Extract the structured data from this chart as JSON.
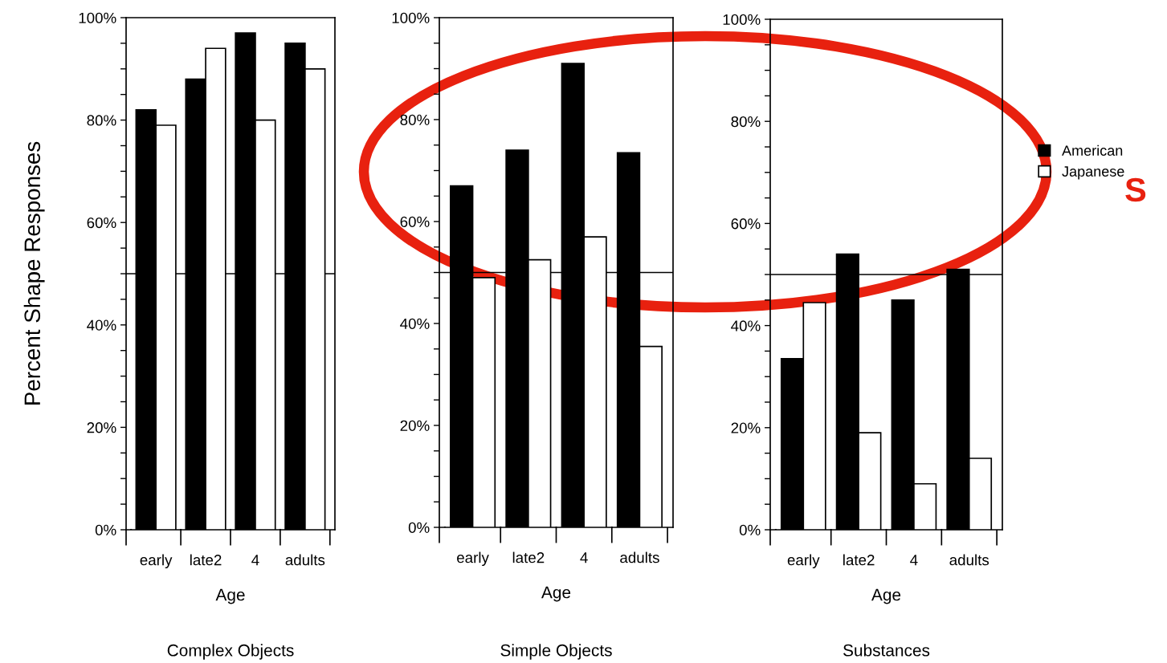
{
  "chart_data": [
    {
      "type": "bar",
      "title": "Complex Objects",
      "xlabel": "Age",
      "ylabel": "Percent Shape Responses",
      "categories": [
        "early",
        "late2",
        "4",
        "adults"
      ],
      "series": [
        {
          "color": "#000000",
          "values": [
            82,
            88,
            97,
            95
          ]
        },
        {
          "color": "#ffffff",
          "values": [
            79,
            94,
            80,
            90
          ]
        }
      ],
      "ylim": [
        0,
        100
      ],
      "yticks": [
        {
          "value": 0,
          "label": "0%"
        },
        {
          "value": 5,
          "label": null
        },
        {
          "value": 10,
          "label": null
        },
        {
          "value": 15,
          "label": null
        },
        {
          "value": 20,
          "label": "20%"
        },
        {
          "value": 25,
          "label": null
        },
        {
          "value": 30,
          "label": null
        },
        {
          "value": 35,
          "label": null
        },
        {
          "value": 40,
          "label": "40%"
        },
        {
          "value": 45,
          "label": null
        },
        {
          "value": 50,
          "label": null
        },
        {
          "value": 55,
          "label": null
        },
        {
          "value": 60,
          "label": "60%"
        },
        {
          "value": 65,
          "label": null
        },
        {
          "value": 70,
          "label": null
        },
        {
          "value": 75,
          "label": null
        },
        {
          "value": 80,
          "label": "80%"
        },
        {
          "value": 85,
          "label": null
        },
        {
          "value": 90,
          "label": null
        },
        {
          "value": 95,
          "label": null
        },
        {
          "value": 100,
          "label": "100%"
        }
      ],
      "ref_lines": [
        {
          "axis": "y",
          "value": 50,
          "label": null,
          "color": "#000000"
        }
      ],
      "grid": false
    },
    {
      "type": "bar",
      "title": "Simple Objects",
      "xlabel": "Age",
      "categories": [
        "early",
        "late2",
        "4",
        "adults"
      ],
      "series": [
        {
          "color": "#000000",
          "values": [
            67,
            74,
            91,
            73.5
          ]
        },
        {
          "color": "#ffffff",
          "values": [
            49,
            52.5,
            57,
            35.5
          ]
        }
      ],
      "ylim": [
        0,
        100
      ],
      "yticks": [
        {
          "value": 0,
          "label": "0%"
        },
        {
          "value": 5,
          "label": null
        },
        {
          "value": 10,
          "label": null
        },
        {
          "value": 15,
          "label": null
        },
        {
          "value": 20,
          "label": "20%"
        },
        {
          "value": 25,
          "label": null
        },
        {
          "value": 30,
          "label": null
        },
        {
          "value": 35,
          "label": null
        },
        {
          "value": 40,
          "label": "40%"
        },
        {
          "value": 45,
          "label": null
        },
        {
          "value": 50,
          "label": null
        },
        {
          "value": 55,
          "label": null
        },
        {
          "value": 60,
          "label": "60%"
        },
        {
          "value": 65,
          "label": null
        },
        {
          "value": 70,
          "label": null
        },
        {
          "value": 75,
          "label": null
        },
        {
          "value": 80,
          "label": "80%"
        },
        {
          "value": 85,
          "label": null
        },
        {
          "value": 90,
          "label": null
        },
        {
          "value": 95,
          "label": null
        },
        {
          "value": 100,
          "label": "100%"
        }
      ],
      "ref_lines": [
        {
          "axis": "y",
          "value": 50,
          "label": null,
          "color": "#000000"
        }
      ],
      "grid": false
    },
    {
      "type": "bar",
      "title": "Substances",
      "xlabel": "Age",
      "categories": [
        "early",
        "late2",
        "4",
        "adults"
      ],
      "series": [
        {
          "name": "American",
          "color": "#000000",
          "values": [
            33.5,
            54,
            45,
            51
          ]
        },
        {
          "name": "Japanese",
          "color": "#ffffff",
          "values": [
            44.5,
            19,
            9,
            14
          ]
        }
      ],
      "ylim": [
        0,
        100
      ],
      "yticks": [
        {
          "value": 0,
          "label": "0%"
        },
        {
          "value": 5,
          "label": null
        },
        {
          "value": 10,
          "label": null
        },
        {
          "value": 15,
          "label": null
        },
        {
          "value": 20,
          "label": "20%"
        },
        {
          "value": 25,
          "label": null
        },
        {
          "value": 30,
          "label": null
        },
        {
          "value": 35,
          "label": null
        },
        {
          "value": 40,
          "label": "40%"
        },
        {
          "value": 45,
          "label": null
        },
        {
          "value": 50,
          "label": null
        },
        {
          "value": 55,
          "label": null
        },
        {
          "value": 60,
          "label": "60%"
        },
        {
          "value": 65,
          "label": null
        },
        {
          "value": 70,
          "label": null
        },
        {
          "value": 75,
          "label": null
        },
        {
          "value": 80,
          "label": "80%"
        },
        {
          "value": 85,
          "label": null
        },
        {
          "value": 90,
          "label": null
        },
        {
          "value": 95,
          "label": null
        },
        {
          "value": 100,
          "label": "100%"
        }
      ],
      "ref_lines": [
        {
          "axis": "y",
          "value": 50,
          "label": null,
          "color": "#000000"
        }
      ],
      "grid": false,
      "legend": "right",
      "annotations": [
        "S"
      ]
    }
  ]
}
